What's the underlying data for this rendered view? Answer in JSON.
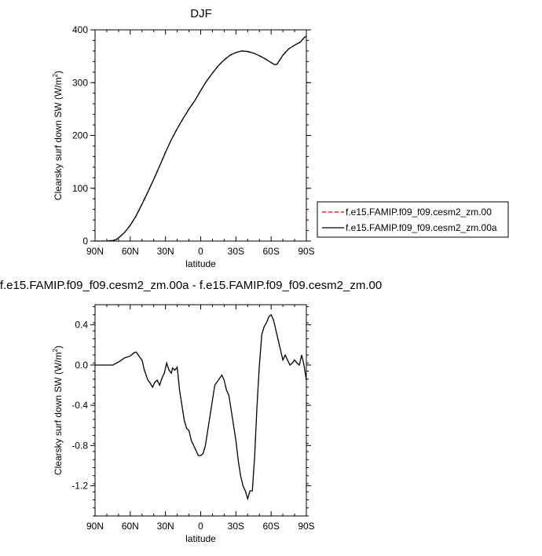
{
  "chart_data": [
    {
      "type": "line",
      "title": "DJF",
      "xlabel": "latitude",
      "ylabel": "Clearsky surf down SW (W/m",
      "ylabel_sup": "2",
      "ylabel_close": ")",
      "xlim": [
        90,
        -90
      ],
      "ylim": [
        0,
        400
      ],
      "x_ticks": [
        90,
        60,
        30,
        0,
        -30,
        -60,
        -90
      ],
      "x_tick_labels": [
        "90N",
        "60N",
        "30N",
        "0",
        "30S",
        "60S",
        "90S"
      ],
      "y_ticks": [
        0,
        100,
        200,
        300,
        400
      ],
      "y_tick_labels": [
        "0",
        "100",
        "200",
        "300",
        "400"
      ],
      "legend_position": "right",
      "series": [
        {
          "name": "f.e15.FAMIP.f09_f09.cesm2_zm.00",
          "color": "#e00000",
          "dash": true,
          "x": [
            90,
            80,
            75,
            72,
            70,
            65,
            60,
            55,
            50,
            45,
            40,
            35,
            30,
            25,
            20,
            15,
            10,
            5,
            0,
            -5,
            -10,
            -15,
            -20,
            -25,
            -30,
            -35,
            -40,
            -45,
            -50,
            -55,
            -60,
            -63,
            -65,
            -68,
            -70,
            -75,
            -80,
            -85,
            -88,
            -90
          ],
          "y": [
            0,
            0,
            1,
            3,
            6,
            16,
            30,
            48,
            70,
            93,
            117,
            142,
            168,
            192,
            213,
            232,
            250,
            266,
            285,
            303,
            318,
            332,
            343,
            352,
            357,
            360,
            359,
            356,
            351,
            345,
            338,
            334,
            335,
            345,
            352,
            364,
            371,
            377,
            385,
            388
          ]
        },
        {
          "name": "f.e15.FAMIP.f09_f09.cesm2_zm.00a",
          "color": "#000000",
          "dash": false,
          "x": [
            90,
            80,
            75,
            72,
            70,
            65,
            60,
            55,
            50,
            45,
            40,
            35,
            30,
            25,
            20,
            15,
            10,
            5,
            0,
            -5,
            -10,
            -15,
            -20,
            -25,
            -30,
            -35,
            -40,
            -45,
            -50,
            -55,
            -60,
            -63,
            -65,
            -68,
            -70,
            -75,
            -80,
            -85,
            -88,
            -90
          ],
          "y": [
            0,
            0,
            1,
            3,
            6,
            16,
            30,
            48,
            70,
            93,
            117,
            142,
            168,
            192,
            213,
            232,
            250,
            266,
            285,
            303,
            318,
            332,
            343,
            352,
            357,
            360,
            359,
            356,
            351,
            345,
            338,
            334,
            335,
            345,
            352,
            364,
            371,
            377,
            385,
            388
          ]
        }
      ]
    },
    {
      "type": "line",
      "title": "f.e15.FAMIP.f09_f09.cesm2_zm.00a - f.e15.FAMIP.f09_f09.cesm2_zm.00",
      "xlabel": "latitude",
      "ylabel": "Clearsky surf down SW (W/m",
      "ylabel_sup": "2",
      "ylabel_close": ")",
      "xlim": [
        90,
        -90
      ],
      "ylim": [
        -1.5,
        0.6
      ],
      "x_ticks": [
        90,
        60,
        30,
        0,
        -30,
        -60,
        -90
      ],
      "x_tick_labels": [
        "90N",
        "60N",
        "30N",
        "0",
        "30S",
        "60S",
        "90S"
      ],
      "y_ticks": [
        0.4,
        0.0,
        -0.4,
        -0.8,
        -1.2
      ],
      "y_tick_labels": [
        "0.4",
        "0.0",
        "-0.4",
        "-0.8",
        "-1.2"
      ],
      "series": [
        {
          "color": "#000000",
          "x": [
            90,
            80,
            75,
            70,
            65,
            60,
            57,
            55,
            52,
            50,
            48,
            45,
            43,
            41,
            39,
            37,
            35,
            33,
            31,
            29,
            27,
            25,
            24,
            22,
            20,
            18,
            16,
            14,
            12,
            10,
            8,
            6,
            4,
            2,
            0,
            -2,
            -4,
            -6,
            -8,
            -10,
            -12,
            -15,
            -18,
            -20,
            -22,
            -24,
            -26,
            -28,
            -30,
            -32,
            -34,
            -36,
            -38,
            -40,
            -42,
            -44,
            -46,
            -48,
            -50,
            -52,
            -54,
            -56,
            -58,
            -60,
            -62,
            -64,
            -66,
            -68,
            -70,
            -72,
            -74,
            -76,
            -78,
            -80,
            -82,
            -84,
            -86,
            -88,
            -90
          ],
          "y": [
            0.0,
            0.0,
            0.0,
            0.03,
            0.07,
            0.09,
            0.12,
            0.13,
            0.08,
            0.05,
            -0.05,
            -0.15,
            -0.18,
            -0.22,
            -0.17,
            -0.15,
            -0.2,
            -0.13,
            -0.08,
            0.02,
            -0.05,
            -0.08,
            -0.03,
            -0.05,
            -0.02,
            -0.25,
            -0.4,
            -0.55,
            -0.63,
            -0.65,
            -0.75,
            -0.8,
            -0.85,
            -0.9,
            -0.9,
            -0.88,
            -0.8,
            -0.65,
            -0.5,
            -0.35,
            -0.2,
            -0.15,
            -0.1,
            -0.15,
            -0.25,
            -0.3,
            -0.45,
            -0.6,
            -0.75,
            -0.95,
            -1.1,
            -1.2,
            -1.25,
            -1.33,
            -1.25,
            -1.25,
            -0.9,
            -0.4,
            0.0,
            0.3,
            0.38,
            0.42,
            0.48,
            0.5,
            0.45,
            0.35,
            0.25,
            0.15,
            0.05,
            0.1,
            0.05,
            0.0,
            0.02,
            0.05,
            0.02,
            0.0,
            0.1,
            0.0,
            -0.15
          ]
        }
      ]
    }
  ]
}
